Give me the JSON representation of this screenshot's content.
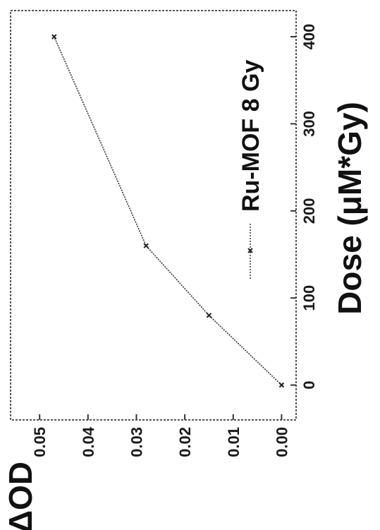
{
  "chart_data": {
    "type": "line",
    "xlabel": "Dose (μM*Gy)",
    "ylabel": "ΔOD",
    "x_ticks": [
      "0",
      "100",
      "200",
      "300",
      "400"
    ],
    "y_ticks": [
      "0.00",
      "0.01",
      "0.02",
      "0.03",
      "0.04",
      "0.05"
    ],
    "xlim": [
      -40,
      430
    ],
    "ylim": [
      -0.003,
      0.056
    ],
    "legend_position": "top-left",
    "grid": false,
    "orientation": "rotated 90° counter-clockwise",
    "series": [
      {
        "name": "Ru-MOF 8 Gy",
        "x": [
          0,
          80,
          160,
          400
        ],
        "y": [
          0.0,
          0.015,
          0.028,
          0.047
        ],
        "color": "#333333",
        "marker": "x"
      }
    ]
  }
}
